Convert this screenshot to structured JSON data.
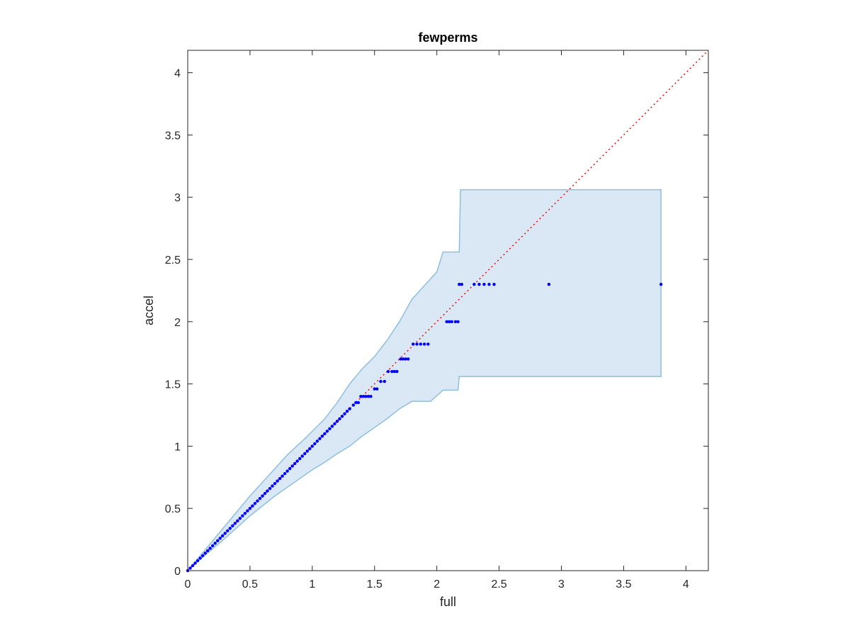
{
  "chart_data": {
    "type": "scatter",
    "title": "fewperms",
    "xlabel": "full",
    "ylabel": "accel",
    "xlim": [
      0,
      4.18
    ],
    "ylim": [
      0,
      4.18
    ],
    "xticks": [
      "0",
      "0.5",
      "1",
      "1.5",
      "2",
      "2.5",
      "3",
      "3.5",
      "4"
    ],
    "yticks": [
      "0",
      "0.5",
      "1",
      "1.5",
      "2",
      "2.5",
      "3",
      "3.5",
      "4"
    ],
    "grid": false,
    "colors": {
      "points": "#0000ff",
      "reference_line": "#ff0000",
      "band_fill": "#d9e8f4",
      "band_edge": "#8fbfdc",
      "axes": "#262626"
    },
    "reference_line": {
      "style": "dotted",
      "from": [
        0,
        0
      ],
      "to": [
        4.18,
        4.18
      ]
    },
    "band_upper": [
      [
        0,
        0
      ],
      [
        0.1,
        0.12
      ],
      [
        0.3,
        0.36
      ],
      [
        0.5,
        0.6
      ],
      [
        0.7,
        0.82
      ],
      [
        0.8,
        0.93
      ],
      [
        0.95,
        1.07
      ],
      [
        1.1,
        1.22
      ],
      [
        1.2,
        1.35
      ],
      [
        1.3,
        1.5
      ],
      [
        1.4,
        1.62
      ],
      [
        1.5,
        1.72
      ],
      [
        1.6,
        1.85
      ],
      [
        1.7,
        2.0
      ],
      [
        1.8,
        2.18
      ],
      [
        1.9,
        2.29
      ],
      [
        2.0,
        2.4
      ],
      [
        2.05,
        2.56
      ],
      [
        2.18,
        2.56
      ],
      [
        2.19,
        3.06
      ],
      [
        3.8,
        3.06
      ]
    ],
    "band_lower": [
      [
        3.8,
        1.56
      ],
      [
        2.18,
        1.56
      ],
      [
        2.17,
        1.45
      ],
      [
        2.05,
        1.45
      ],
      [
        1.95,
        1.36
      ],
      [
        1.8,
        1.36
      ],
      [
        1.7,
        1.3
      ],
      [
        1.6,
        1.22
      ],
      [
        1.5,
        1.15
      ],
      [
        1.4,
        1.08
      ],
      [
        1.3,
        1.0
      ],
      [
        1.2,
        0.94
      ],
      [
        1.1,
        0.87
      ],
      [
        1.0,
        0.81
      ],
      [
        0.9,
        0.74
      ],
      [
        0.7,
        0.6
      ],
      [
        0.5,
        0.44
      ],
      [
        0.3,
        0.26
      ],
      [
        0.1,
        0.09
      ],
      [
        0,
        0
      ]
    ],
    "points": {
      "x": [
        0,
        0.02,
        0.04,
        0.06,
        0.08,
        0.1,
        0.12,
        0.14,
        0.16,
        0.18,
        0.2,
        0.22,
        0.24,
        0.26,
        0.28,
        0.3,
        0.32,
        0.34,
        0.36,
        0.38,
        0.4,
        0.42,
        0.44,
        0.46,
        0.48,
        0.5,
        0.52,
        0.54,
        0.56,
        0.58,
        0.6,
        0.62,
        0.64,
        0.66,
        0.68,
        0.7,
        0.72,
        0.74,
        0.76,
        0.78,
        0.8,
        0.82,
        0.84,
        0.86,
        0.88,
        0.9,
        0.92,
        0.94,
        0.96,
        0.98,
        1.0,
        1.02,
        1.04,
        1.06,
        1.08,
        1.1,
        1.12,
        1.14,
        1.16,
        1.18,
        1.2,
        1.22,
        1.24,
        1.26,
        1.28,
        1.3,
        1.33,
        1.35,
        1.37,
        1.39,
        1.41,
        1.43,
        1.45,
        1.47,
        1.5,
        1.52,
        1.55,
        1.58,
        1.61,
        1.64,
        1.66,
        1.68,
        1.71,
        1.73,
        1.75,
        1.77,
        1.81,
        1.84,
        1.87,
        1.9,
        1.93,
        2.08,
        2.1,
        2.12,
        2.15,
        2.17,
        2.18,
        2.2,
        2.3,
        2.34,
        2.38,
        2.42,
        2.46,
        2.9,
        3.8
      ],
      "y": [
        0,
        0.02,
        0.04,
        0.06,
        0.08,
        0.1,
        0.12,
        0.14,
        0.16,
        0.18,
        0.2,
        0.22,
        0.24,
        0.26,
        0.28,
        0.3,
        0.32,
        0.34,
        0.36,
        0.38,
        0.4,
        0.42,
        0.44,
        0.46,
        0.48,
        0.5,
        0.52,
        0.54,
        0.56,
        0.58,
        0.6,
        0.62,
        0.64,
        0.66,
        0.68,
        0.7,
        0.72,
        0.74,
        0.76,
        0.78,
        0.8,
        0.82,
        0.84,
        0.86,
        0.88,
        0.9,
        0.92,
        0.94,
        0.96,
        0.98,
        1.0,
        1.02,
        1.04,
        1.06,
        1.08,
        1.1,
        1.12,
        1.14,
        1.16,
        1.18,
        1.2,
        1.22,
        1.24,
        1.26,
        1.28,
        1.3,
        1.33,
        1.35,
        1.35,
        1.4,
        1.4,
        1.4,
        1.4,
        1.4,
        1.46,
        1.46,
        1.52,
        1.52,
        1.6,
        1.6,
        1.6,
        1.6,
        1.7,
        1.7,
        1.7,
        1.7,
        1.82,
        1.82,
        1.82,
        1.82,
        1.82,
        2.0,
        2.0,
        2.0,
        2.0,
        2.0,
        2.3,
        2.3,
        2.3,
        2.3,
        2.3,
        2.3,
        2.3,
        2.3,
        2.3
      ]
    }
  }
}
